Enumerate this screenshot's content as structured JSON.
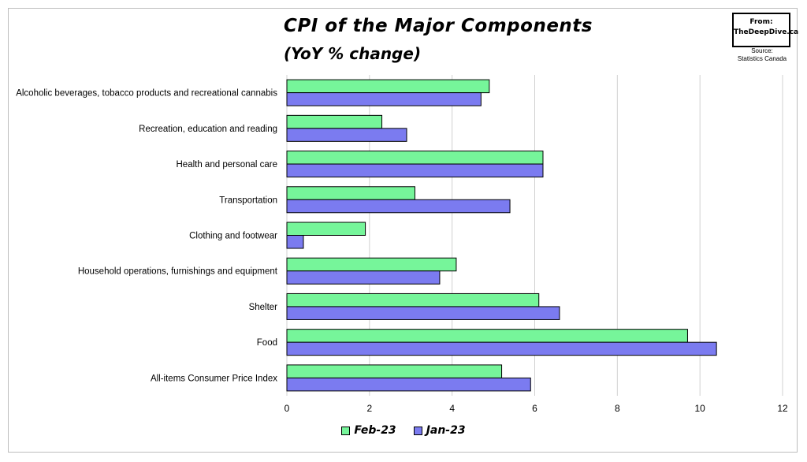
{
  "chart_data": {
    "type": "bar",
    "orientation": "horizontal",
    "title": "CPI of the Major Components",
    "subtitle": "(YoY % change)",
    "categories": [
      "Alcoholic beverages, tobacco products and recreational cannabis",
      "Recreation, education and reading",
      "Health and personal care",
      "Transportation",
      "Clothing and footwear",
      "Household operations, furnishings and equipment",
      "Shelter",
      "Food",
      "All-items Consumer Price Index"
    ],
    "series": [
      {
        "name": "Feb-23",
        "color": "#76f59a",
        "values": [
          4.9,
          2.3,
          6.2,
          3.1,
          1.9,
          4.1,
          6.1,
          9.7,
          5.2
        ]
      },
      {
        "name": "Jan-23",
        "color": "#7b7bf0",
        "values": [
          4.7,
          2.9,
          6.2,
          5.4,
          0.4,
          3.7,
          6.6,
          10.4,
          5.9
        ]
      }
    ],
    "xlim": [
      0,
      12
    ],
    "xticks": [
      "0",
      "2",
      "4",
      "6",
      "8",
      "10",
      "12"
    ],
    "grid": true,
    "legend_position": "bottom"
  },
  "brand": {
    "line1": "From:",
    "line2": "TheDeepDive.ca"
  },
  "source": {
    "line1": "Source:",
    "line2": "Statistics Canada"
  }
}
